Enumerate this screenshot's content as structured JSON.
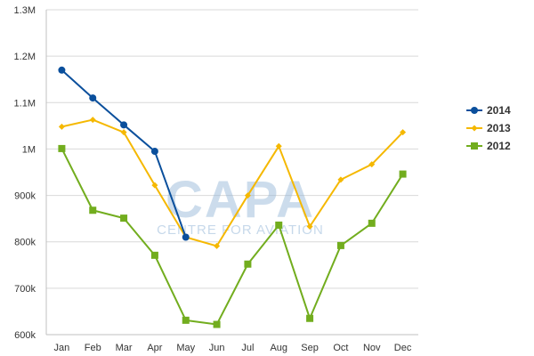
{
  "chart_data": {
    "type": "line",
    "categories": [
      "Jan",
      "Feb",
      "Mar",
      "Apr",
      "May",
      "Jun",
      "Jul",
      "Aug",
      "Sep",
      "Oct",
      "Nov",
      "Dec"
    ],
    "series": [
      {
        "name": "2014",
        "color": "#0a4f9c",
        "marker": "circle",
        "values": [
          1170000,
          1110000,
          1052000,
          995000,
          810000,
          null,
          null,
          null,
          null,
          null,
          null,
          null
        ]
      },
      {
        "name": "2013",
        "color": "#f5b800",
        "marker": "diamond",
        "values": [
          1048000,
          1063000,
          1036000,
          922000,
          810000,
          791000,
          900000,
          1006000,
          833000,
          934000,
          967000,
          1036000
        ]
      },
      {
        "name": "2012",
        "color": "#72ad1e",
        "marker": "square",
        "values": [
          1001000,
          868000,
          851000,
          771000,
          631000,
          622000,
          752000,
          836000,
          635000,
          792000,
          840000,
          946000
        ]
      }
    ],
    "yticks": [
      {
        "value": 600000,
        "label": "600k"
      },
      {
        "value": 700000,
        "label": "700k"
      },
      {
        "value": 800000,
        "label": "800k"
      },
      {
        "value": 900000,
        "label": "900k"
      },
      {
        "value": 1000000,
        "label": "1M"
      },
      {
        "value": 1100000,
        "label": "1.1M"
      },
      {
        "value": 1200000,
        "label": "1.2M"
      },
      {
        "value": 1300000,
        "label": "1.3M"
      }
    ],
    "ylim": [
      600000,
      1300000
    ],
    "grid": true,
    "legend": "right",
    "title": "",
    "xlabel": "",
    "ylabel": ""
  },
  "watermark": {
    "main": "CAPA",
    "sub": "CENTRE FOR AVIATION"
  }
}
